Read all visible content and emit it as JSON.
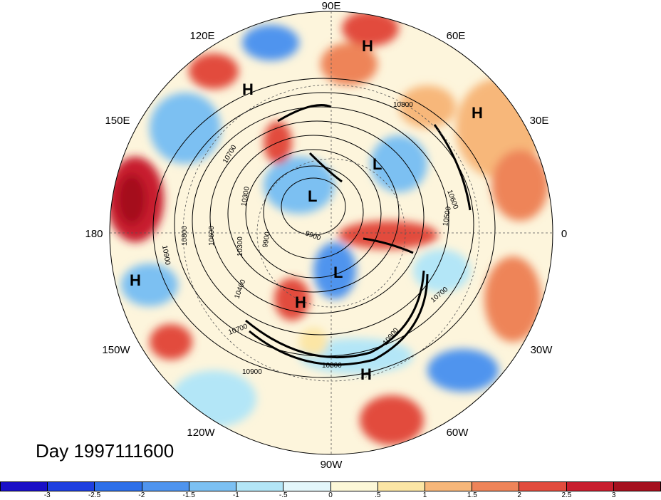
{
  "title": "Day 1997111600",
  "longitude_labels": [
    {
      "id": "lon-90e",
      "text": "90E"
    },
    {
      "id": "lon-60e",
      "text": "60E"
    },
    {
      "id": "lon-30e",
      "text": "30E"
    },
    {
      "id": "lon-0",
      "text": "0"
    },
    {
      "id": "lon-30w",
      "text": "30W"
    },
    {
      "id": "lon-60w",
      "text": "60W"
    },
    {
      "id": "lon-90w",
      "text": "90W"
    },
    {
      "id": "lon-120w",
      "text": "120W"
    },
    {
      "id": "lon-150w",
      "text": "150W"
    },
    {
      "id": "lon-180",
      "text": "180"
    },
    {
      "id": "lon-150e",
      "text": "150E"
    },
    {
      "id": "lon-120e",
      "text": "120E"
    }
  ],
  "pressure_systems": [
    {
      "text": "H"
    },
    {
      "text": "H"
    },
    {
      "text": "H"
    },
    {
      "text": "L"
    },
    {
      "text": "L"
    },
    {
      "text": "L"
    },
    {
      "text": "H"
    },
    {
      "text": "H"
    },
    {
      "text": "H"
    }
  ],
  "contour_labels": [
    "10800",
    "10700",
    "10600",
    "10500",
    "10300",
    "10900",
    "10800",
    "10600",
    "10300",
    "9900",
    "9900",
    "10400",
    "10700",
    "10700",
    "10900",
    "10800",
    "10900"
  ],
  "colorbar": {
    "colors": [
      "#1a0fc7",
      "#1e3fe0",
      "#2d6fe8",
      "#4f94ee",
      "#7cc0f2",
      "#b3e6f7",
      "#e4f7fb",
      "#fdf8d8",
      "#fce6a5",
      "#f7b77a",
      "#ee8459",
      "#e24c3e",
      "#c81e2e",
      "#a5101e"
    ],
    "tick_labels": [
      "-3",
      "-2.5",
      "-2",
      "-1.5",
      "-1",
      "-.5",
      "0",
      ".5",
      "1",
      "1.5",
      "2",
      "2.5",
      "3"
    ]
  }
}
